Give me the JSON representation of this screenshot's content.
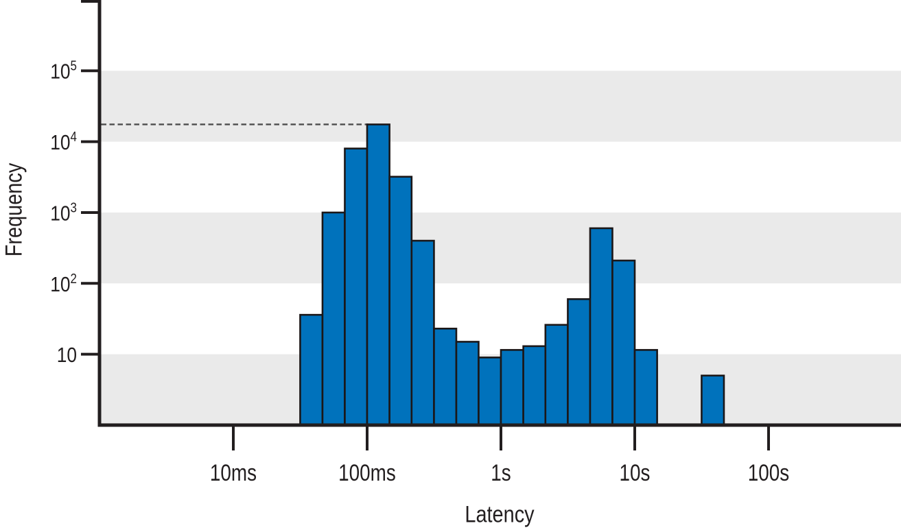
{
  "figure": {
    "y_axis_title": "Frequency",
    "x_axis_title": "Latency"
  },
  "chart_data": {
    "type": "bar",
    "subtype": "histogram",
    "title": "",
    "xlabel": "Latency",
    "ylabel": "Frequency",
    "x_scale": "log",
    "y_scale": "log",
    "x_unit": "seconds",
    "xlim_s": [
      0.001,
      1000
    ],
    "ylim": [
      1,
      1000000
    ],
    "bins_per_decade": 6,
    "x_ticks": [
      {
        "label": "10ms",
        "seconds": 0.01
      },
      {
        "label": "100ms",
        "seconds": 0.1
      },
      {
        "label": "1s",
        "seconds": 1
      },
      {
        "label": "10s",
        "seconds": 10
      },
      {
        "label": "100s",
        "seconds": 100
      }
    ],
    "y_ticks": [
      {
        "label": "10",
        "base": "10",
        "exp": "",
        "value": 10
      },
      {
        "label": "10²",
        "base": "10",
        "exp": "2",
        "value": 100
      },
      {
        "label": "10³",
        "base": "10",
        "exp": "3",
        "value": 1000
      },
      {
        "label": "10⁴",
        "base": "10",
        "exp": "4",
        "value": 10000
      },
      {
        "label": "10⁵",
        "base": "10",
        "exp": "5",
        "value": 100000
      },
      {
        "label": "",
        "base": "",
        "exp": "",
        "value": 1000000
      }
    ],
    "bins": [
      {
        "from_s": 0.0316,
        "to_s": 0.0464,
        "count": 36
      },
      {
        "from_s": 0.0464,
        "to_s": 0.0681,
        "count": 1000
      },
      {
        "from_s": 0.0681,
        "to_s": 0.1,
        "count": 8000
      },
      {
        "from_s": 0.1,
        "to_s": 0.147,
        "count": 17500
      },
      {
        "from_s": 0.147,
        "to_s": 0.215,
        "count": 3200
      },
      {
        "from_s": 0.215,
        "to_s": 0.316,
        "count": 400
      },
      {
        "from_s": 0.316,
        "to_s": 0.464,
        "count": 23
      },
      {
        "from_s": 0.464,
        "to_s": 0.681,
        "count": 15
      },
      {
        "from_s": 0.681,
        "to_s": 1.0,
        "count": 9
      },
      {
        "from_s": 1.0,
        "to_s": 1.47,
        "count": 11.5
      },
      {
        "from_s": 1.47,
        "to_s": 2.15,
        "count": 13
      },
      {
        "from_s": 2.15,
        "to_s": 3.16,
        "count": 26
      },
      {
        "from_s": 3.16,
        "to_s": 4.64,
        "count": 60
      },
      {
        "from_s": 4.64,
        "to_s": 6.81,
        "count": 600
      },
      {
        "from_s": 6.81,
        "to_s": 10.0,
        "count": 210
      },
      {
        "from_s": 10.0,
        "to_s": 14.7,
        "count": 11.5
      },
      {
        "from_s": 31.6,
        "to_s": 46.4,
        "count": 5
      }
    ],
    "annotation": {
      "style": "dashed-horizontal-line",
      "value": 17500
    },
    "grid_bands": [
      [
        1,
        10
      ],
      [
        100,
        1000
      ],
      [
        10000,
        100000
      ]
    ],
    "legend": "none",
    "colors": {
      "bar_fill": "#0072BC",
      "bar_stroke": "#1b1718",
      "band": "#EAEAEA",
      "axis": "#221e1f",
      "dashed_line": "#4d4d4d",
      "background": "#ffffff"
    }
  }
}
